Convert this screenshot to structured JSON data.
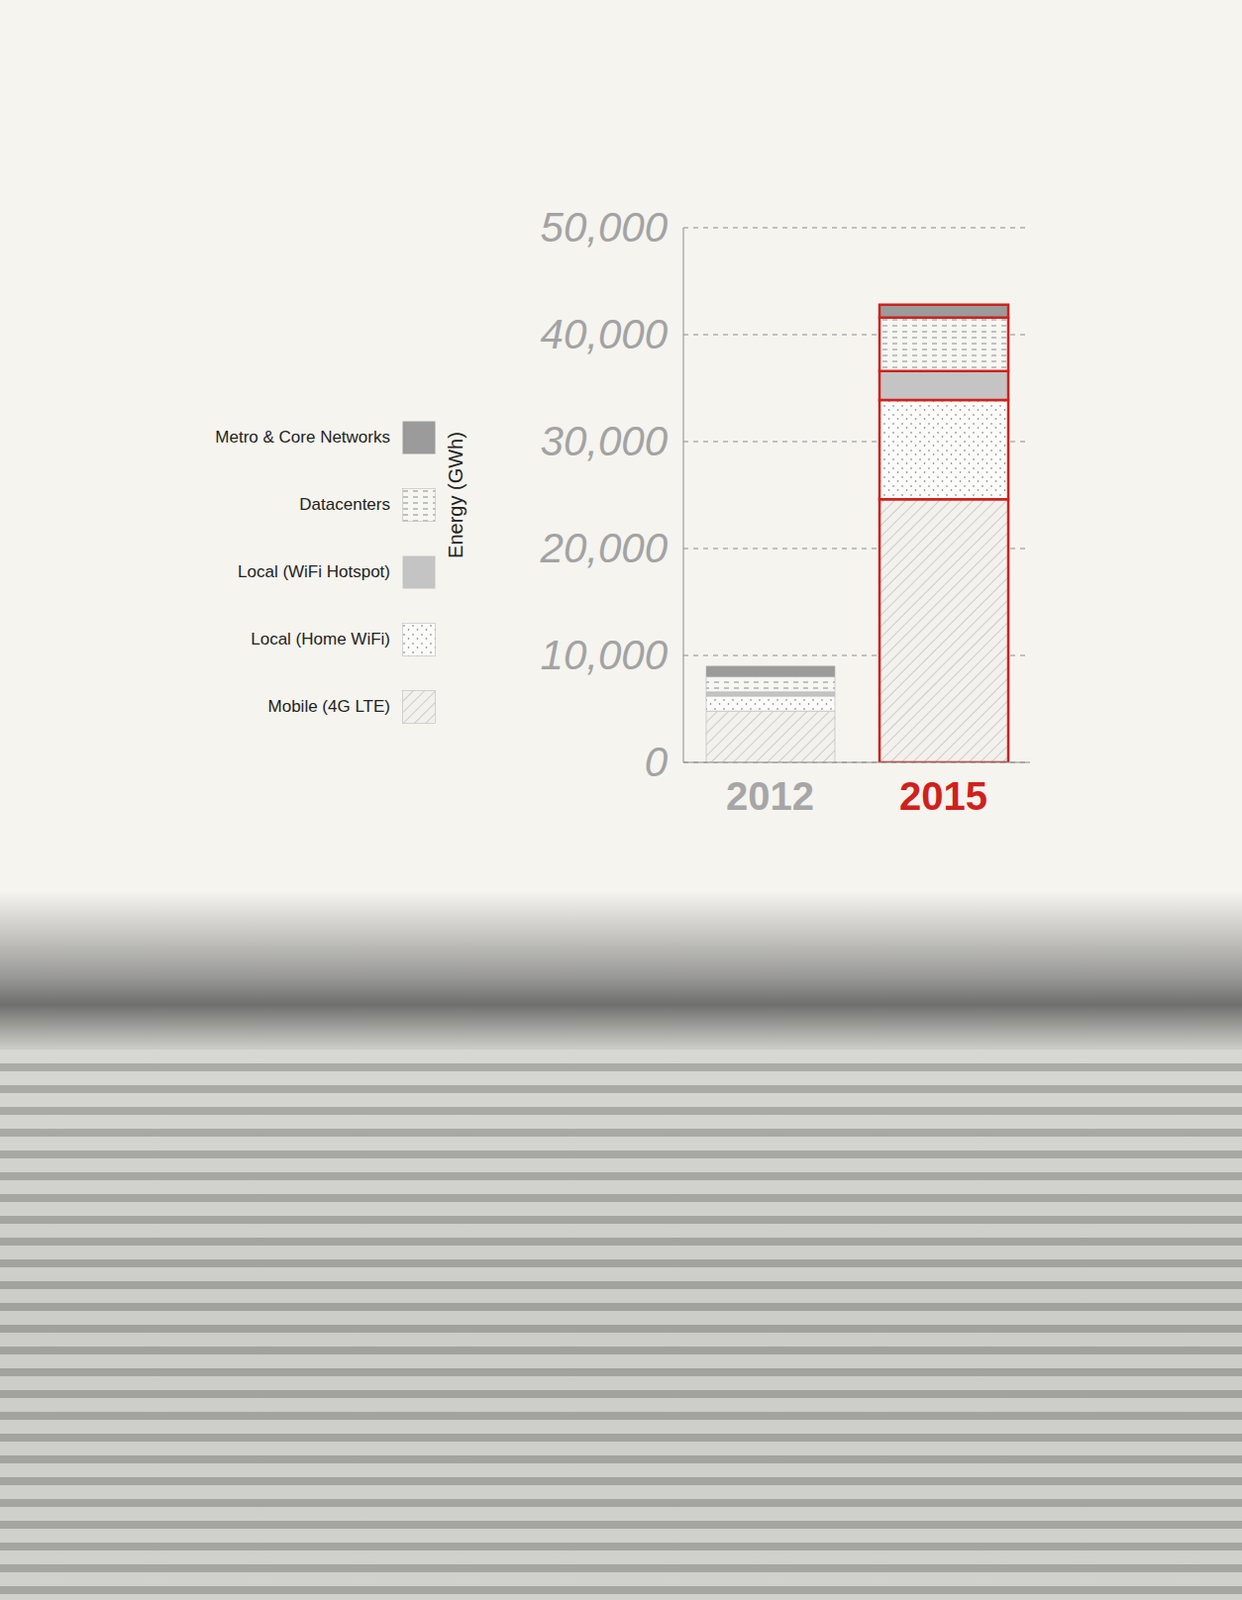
{
  "chart_data": {
    "type": "bar",
    "stacked": true,
    "y_label": "Energy (GWh)",
    "categories": [
      "2012",
      "2015"
    ],
    "series": [
      {
        "name": "Mobile (4G LTE)",
        "color": "#a8a8a8",
        "values": [
          4800,
          24600
        ]
      },
      {
        "name": "Local (Home WiFi)",
        "color": "#6e6e6e",
        "values": [
          1400,
          9300
        ]
      },
      {
        "name": "Local (WiFi Hotspot)",
        "color": "#c4c4c4",
        "values": [
          400,
          2700
        ]
      },
      {
        "name": "Datacenters",
        "color": "#8a8a8a",
        "values": [
          1400,
          5000
        ]
      },
      {
        "name": "Metro & Core Networks",
        "color": "#9b9b9b",
        "values": [
          1000,
          1200
        ]
      }
    ],
    "ylim": [
      0,
      50000
    ],
    "yticks": [
      0,
      {
        "value": 10000,
        "label": "10,000"
      },
      {
        "value": 20000,
        "label": "20,000"
      },
      {
        "value": 30000,
        "label": "30,000"
      },
      {
        "value": 40000,
        "label": "40,000"
      },
      {
        "value": 50000,
        "label": "50,000"
      }
    ],
    "grid": true,
    "legend": "left"
  }
}
